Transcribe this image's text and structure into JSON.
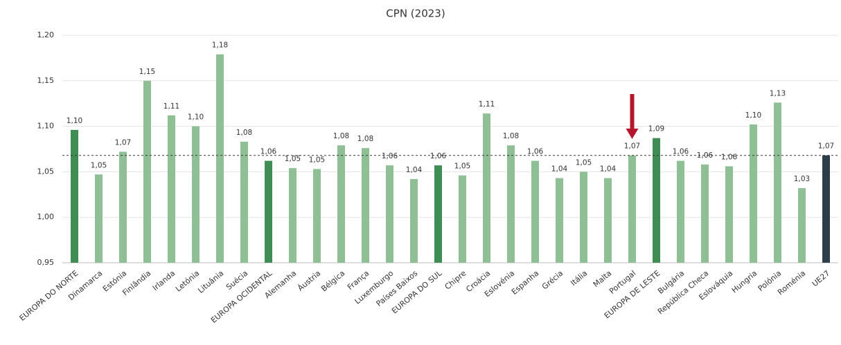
{
  "chart_data": {
    "type": "bar",
    "title": "CPN (2023)",
    "categories": [
      "EUROPA DO NORTE",
      "Dinamarca",
      "Estónia",
      "Finlândia",
      "Irlanda",
      "Letónia",
      "Lituânia",
      "Suécia",
      "EUROPA OCIDENTAL",
      "Alemanha",
      "Áustria",
      "Bélgica",
      "França",
      "Luxemburgo",
      "Países Baixos",
      "EUROPA DO SUL",
      "Chipre",
      "Croácia",
      "Eslovénia",
      "Espanha",
      "Grécia",
      "Itália",
      "Malta",
      "Portugal",
      "EUROPA DE LESTE",
      "Bulgária",
      "República Checa",
      "Eslováquia",
      "Hungria",
      "Polónia",
      "Roménia",
      "UE27"
    ],
    "values": [
      1.096,
      1.047,
      1.072,
      1.15,
      1.112,
      1.1,
      1.179,
      1.083,
      1.062,
      1.054,
      1.053,
      1.079,
      1.076,
      1.057,
      1.042,
      1.057,
      1.046,
      1.114,
      1.079,
      1.062,
      1.043,
      1.05,
      1.043,
      1.068,
      1.087,
      1.062,
      1.058,
      1.056,
      1.102,
      1.126,
      1.032,
      1.068
    ],
    "value_labels": [
      "1,10",
      "1,05",
      "1,07",
      "1,15",
      "1,11",
      "1,10",
      "1,18",
      "1,08",
      "1,06",
      "1,05",
      "1,05",
      "1,08",
      "1,08",
      "1,06",
      "1,04",
      "1,06",
      "1,05",
      "1,11",
      "1,08",
      "1,06",
      "1,04",
      "1,05",
      "1,04",
      "1,07",
      "1,09",
      "1,06",
      "1,06",
      "1,06",
      "1,10",
      "1,13",
      "1,03",
      "1,07"
    ],
    "colors": [
      "#3f8c55",
      "#8fbf95",
      "#8fbf95",
      "#8fbf95",
      "#8fbf95",
      "#8fbf95",
      "#8fbf95",
      "#8fbf95",
      "#3f8c55",
      "#8fbf95",
      "#8fbf95",
      "#8fbf95",
      "#8fbf95",
      "#8fbf95",
      "#8fbf95",
      "#3f8c55",
      "#8fbf95",
      "#8fbf95",
      "#8fbf95",
      "#8fbf95",
      "#8fbf95",
      "#8fbf95",
      "#8fbf95",
      "#8fbf95",
      "#3f8c55",
      "#8fbf95",
      "#8fbf95",
      "#8fbf95",
      "#8fbf95",
      "#8fbf95",
      "#8fbf95",
      "#2d3d49"
    ],
    "ylim": [
      0.95,
      1.2
    ],
    "yticks": [
      {
        "value": 0.95,
        "label": "0,95"
      },
      {
        "value": 1.0,
        "label": "1,00"
      },
      {
        "value": 1.05,
        "label": "1,05"
      },
      {
        "value": 1.1,
        "label": "1,10"
      },
      {
        "value": 1.15,
        "label": "1,15"
      },
      {
        "value": 1.2,
        "label": "1,20"
      }
    ],
    "grid": true,
    "reference_line": 1.068,
    "highlight_index": 23,
    "arrow_color": "#b5182e"
  }
}
